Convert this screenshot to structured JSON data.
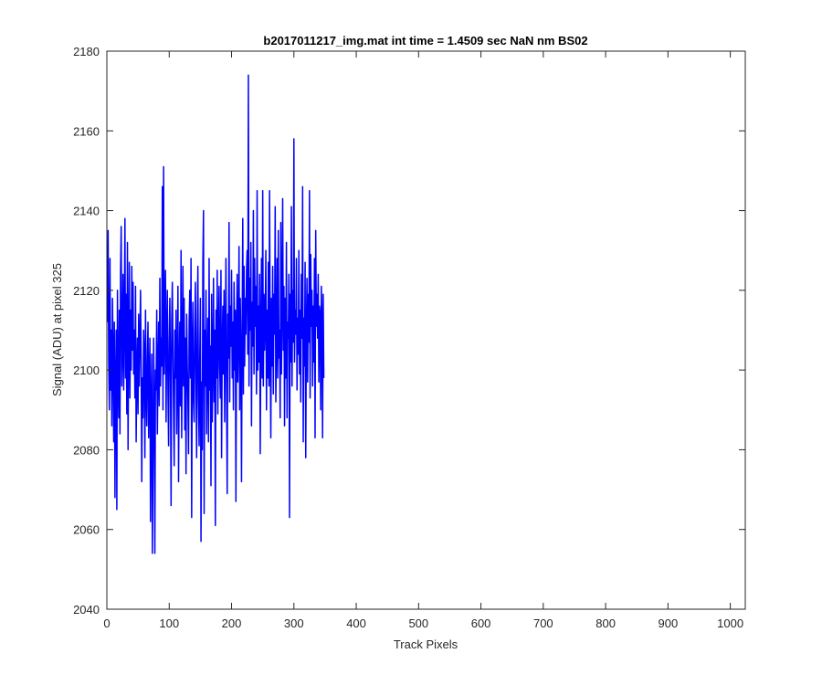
{
  "chart_data": {
    "type": "line",
    "title": "b2017011217_img.mat int time = 1.4509 sec  NaN nm BS02",
    "xlabel": "Track Pixels",
    "ylabel": "Signal (ADU) at pixel 325",
    "xlim": [
      0,
      1024
    ],
    "ylim": [
      2040,
      2180
    ],
    "xticks": [
      0,
      100,
      200,
      300,
      400,
      500,
      600,
      700,
      800,
      900,
      1000
    ],
    "yticks": [
      2040,
      2060,
      2080,
      2100,
      2120,
      2140,
      2160,
      2180
    ],
    "grid": false,
    "line_color": "#0000ff",
    "series": [
      {
        "x_start": 1,
        "x_step": 1,
        "values": [
          2112,
          2135,
          2102,
          2090,
          2128,
          2095,
          2110,
          2086,
          2118,
          2104,
          2082,
          2112,
          2068,
          2096,
          2110,
          2065,
          2120,
          2099,
          2088,
          2115,
          2084,
          2125,
          2136,
          2096,
          2105,
          2124,
          2095,
          2111,
          2138,
          2098,
          2119,
          2089,
          2132,
          2080,
          2108,
          2127,
          2093,
          2115,
          2100,
          2126,
          2105,
          2122,
          2099,
          2110,
          2093,
          2121,
          2082,
          2099,
          2108,
          2089,
          2114,
          2096,
          2107,
          2120,
          2101,
          2072,
          2098,
          2088,
          2110,
          2104,
          2078,
          2115,
          2095,
          2086,
          2103,
          2112,
          2083,
          2097,
          2108,
          2062,
          2090,
          2104,
          2054,
          2078,
          2108,
          2090,
          2054,
          2100,
          2095,
          2115,
          2084,
          2099,
          2112,
          2091,
          2123,
          2096,
          2108,
          2101,
          2146,
          2090,
          2151,
          2099,
          2112,
          2125,
          2087,
          2109,
          2120,
          2095,
          2081,
          2107,
          2118,
          2098,
          2066,
          2112,
          2122,
          2105,
          2090,
          2076,
          2110,
          2098,
          2115,
          2084,
          2099,
          2121,
          2072,
          2099,
          2112,
          2091,
          2130,
          2083,
          2104,
          2126,
          2096,
          2118,
          2085,
          2108,
          2074,
          2114,
          2101,
          2093,
          2079,
          2112,
          2120,
          2098,
          2128,
          2063,
          2104,
          2117,
          2092,
          2087,
          2109,
          2122,
          2098,
          2078,
          2109,
          2126,
          2092,
          2081,
          2103,
          2118,
          2057,
          2097,
          2080,
          2127,
          2140,
          2064,
          2110,
          2096,
          2120,
          2084,
          2101,
          2113,
          2082,
          2128,
          2095,
          2106,
          2071,
          2119,
          2087,
          2101,
          2123,
          2092,
          2110,
          2061,
          2115,
          2098,
          2125,
          2089,
          2109,
          2121,
          2101,
          2093,
          2125,
          2078,
          2105,
          2116,
          2099,
          2120,
          2087,
          2108,
          2128,
          2095,
          2069,
          2114,
          2103,
          2137,
          2092,
          2116,
          2106,
          2125,
          2098,
          2112,
          2090,
          2122,
          2100,
          2115,
          2067,
          2110,
          2124,
          2097,
          2108,
          2131,
          2090,
          2118,
          2105,
          2072,
          2112,
          2138,
          2094,
          2126,
          2101,
          2118,
          2109,
          2125,
          2130,
          2104,
          2174,
          2096,
          2123,
          2110,
          2132,
          2086,
          2117,
          2106,
          2140,
          2099,
          2128,
          2111,
          2121,
          2094,
          2145,
          2100,
          2116,
          2102,
          2124,
          2079,
          2109,
          2128,
          2098,
          2145,
          2096,
          2119,
          2105,
          2112,
          2130,
          2090,
          2115,
          2098,
          2127,
          2096,
          2145,
          2106,
          2083,
          2118,
          2101,
          2126,
          2094,
          2119,
          2109,
          2141,
          2092,
          2107,
          2128,
          2098,
          2135,
          2103,
          2110,
          2088,
          2137,
          2099,
          2116,
          2143,
          2105,
          2121,
          2086,
          2118,
          2098,
          2132,
          2088,
          2112,
          2108,
          2124,
          2063,
          2119,
          2102,
          2141,
          2096,
          2120,
          2107,
          2158,
          2102,
          2115,
          2109,
          2128,
          2095,
          2113,
          2104,
          2130,
          2099,
          2115,
          2092,
          2124,
          2108,
          2146,
          2082,
          2113,
          2101,
          2127,
          2078,
          2109,
          2123,
          2097,
          2119,
          2107,
          2145,
          2093,
          2129,
          2111,
          2120,
          2096,
          2116,
          2102,
          2128,
          2083,
          2135,
          2111,
          2119,
          2108,
          2124,
          2097,
          2116,
          2114,
          2090,
          2121,
          2112,
          2083,
          2119,
          2098
        ]
      }
    ]
  }
}
